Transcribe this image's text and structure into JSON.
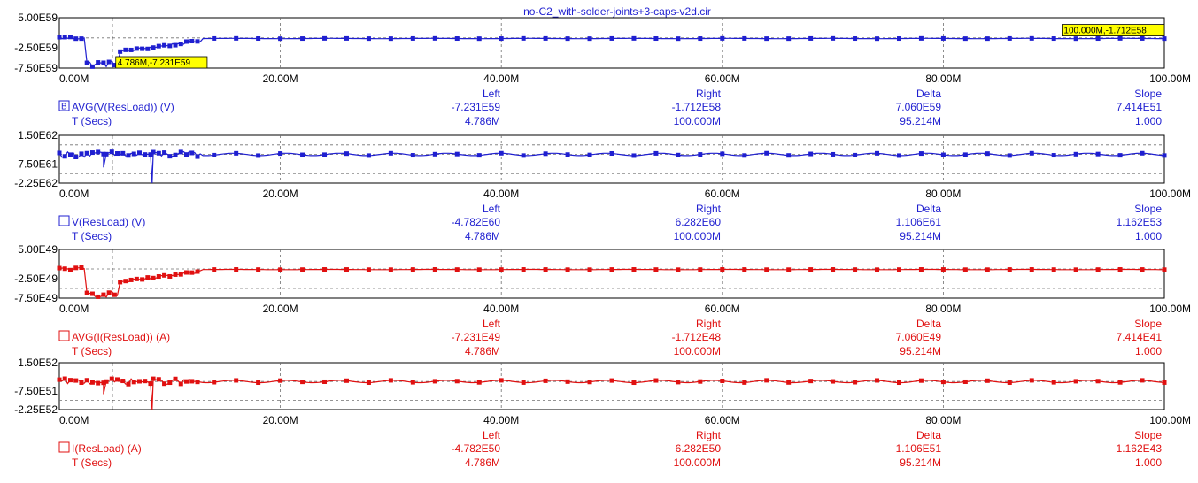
{
  "title": "no-C2_with-solder-joints+3-caps-v2d.cir",
  "x_ticks": [
    "0.00M",
    "20.00M",
    "40.00M",
    "60.00M",
    "80.00M",
    "100.00M"
  ],
  "x_values": [
    0,
    20,
    40,
    60,
    80,
    100
  ],
  "xlim": [
    0,
    100
  ],
  "cursor": {
    "left_x": 4.786,
    "right_x": 100.0
  },
  "colors": {
    "blue": "#1f1fd0",
    "red": "#e01010",
    "tag": "#ffff00"
  },
  "readout_headers": {
    "left": "Left",
    "right": "Right",
    "delta": "Delta",
    "slope": "Slope"
  },
  "chart_data": [
    {
      "type": "line",
      "color_key": "blue",
      "y_ticks": [
        "5.00E59",
        "-2.50E59",
        "-7.50E59"
      ],
      "ylim": [
        -7.5e+59,
        5e+59
      ],
      "tick_values": [
        5e+59,
        -2.5e+59,
        -7.5e+59
      ],
      "grid_values": [
        0,
        -5e+59
      ],
      "tags": [
        {
          "text": "4.786M,-7.231E59",
          "x": 4.786,
          "y": -7.231e+59
        },
        {
          "text": "100.000M,-1.712E58",
          "x": 100.0,
          "y": -1.712e+58
        }
      ],
      "trace": {
        "mode": "avg",
        "start": 0,
        "low": -7.231e+59,
        "end": -1.712e+58
      },
      "series_label": "AVG(V(ResLoad)) (V)",
      "box_glyph": "B",
      "readout": {
        "left": "-7.231E59",
        "right": "-1.712E58",
        "delta": "7.060E59",
        "slope": "7.414E51"
      },
      "time_row": {
        "label": "T (Secs)",
        "left": "4.786M",
        "right": "100.000M",
        "delta": "95.214M",
        "slope": "1.000"
      }
    },
    {
      "type": "line",
      "color_key": "blue",
      "y_ticks": [
        "1.50E62",
        "-7.50E61",
        "-2.25E62"
      ],
      "ylim": [
        -2.25e+62,
        1.5e+62
      ],
      "tick_values": [
        1.5e+62,
        -7.5e+61,
        -2.25e+62
      ],
      "grid_values": [
        7.5e+61,
        0,
        -1.5e+62
      ],
      "tags": [],
      "trace": {
        "mode": "raw",
        "base": 0,
        "spike": -2.25e+62
      },
      "series_label": "V(ResLoad) (V)",
      "box_glyph": "",
      "readout": {
        "left": "-4.782E60",
        "right": "6.282E60",
        "delta": "1.106E61",
        "slope": "1.162E53"
      },
      "time_row": {
        "label": "T (Secs)",
        "left": "4.786M",
        "right": "100.000M",
        "delta": "95.214M",
        "slope": "1.000"
      }
    },
    {
      "type": "line",
      "color_key": "red",
      "y_ticks": [
        "5.00E49",
        "-2.50E49",
        "-7.50E49"
      ],
      "ylim": [
        -7.5e+49,
        5e+49
      ],
      "tick_values": [
        5e+49,
        -2.5e+49,
        -7.5e+49
      ],
      "grid_values": [
        0,
        -5e+49
      ],
      "tags": [],
      "trace": {
        "mode": "avg",
        "start": 0,
        "low": -7.231e+49,
        "end": -1.712e+48
      },
      "series_label": "AVG(I(ResLoad)) (A)",
      "box_glyph": "",
      "readout": {
        "left": "-7.231E49",
        "right": "-1.712E48",
        "delta": "7.060E49",
        "slope": "7.414E41"
      },
      "time_row": {
        "label": "T (Secs)",
        "left": "4.786M",
        "right": "100.000M",
        "delta": "95.214M",
        "slope": "1.000"
      }
    },
    {
      "type": "line",
      "color_key": "red",
      "y_ticks": [
        "1.50E52",
        "-7.50E51",
        "-2.25E52"
      ],
      "ylim": [
        -2.25e+52,
        1.5e+52
      ],
      "tick_values": [
        1.5e+52,
        -7.5e+51,
        -2.25e+52
      ],
      "grid_values": [
        7.5e+51,
        0,
        -1.5e+52
      ],
      "tags": [],
      "trace": {
        "mode": "raw",
        "base": 0,
        "spike": -2.25e+52
      },
      "series_label": "I(ResLoad) (A)",
      "box_glyph": "",
      "readout": {
        "left": "-4.782E50",
        "right": "6.282E50",
        "delta": "1.106E51",
        "slope": "1.162E43"
      },
      "time_row": {
        "label": "T (Secs)",
        "left": "4.786M",
        "right": "100.000M",
        "delta": "95.214M",
        "slope": "1.000"
      }
    }
  ]
}
